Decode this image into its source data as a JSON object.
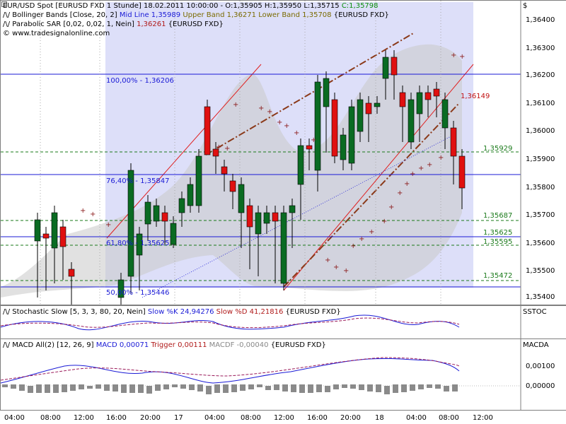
{
  "legend": {
    "line1_a": "EUR/USD Spot [EURUSD FXD  1 Stunde] 18.02.2011 10:00:00 - O:1,35905 H:1,35950 L:1,35715",
    "line1_c": "C:1,35798",
    "line2_a": "/\\/ Bollinger Bands [Close, 20, 2]",
    "line2_mid": "Mid Line 1,35989",
    "line2_upper": "Upper Band 1,36271",
    "line2_lower": "Lower Band 1,35708",
    "line2_tail": "{EURUSD FXD}",
    "line3_a": "/\\/ Parabolic SAR [0,02, 0,02, 1, Nein]",
    "line3_val": "1,36261",
    "line3_tail": "{EURUSD FXD}",
    "line4": "© www.tradesignalonline.com"
  },
  "yaxis_symbol": "$",
  "price_labels": [
    "1,36400",
    "1,36300",
    "1,36200",
    "1,36100",
    "1,36000",
    "1,35900",
    "1,35800",
    "1,35700",
    "1,35600",
    "1,35500",
    "1,35400"
  ],
  "fib_labels": [
    "100,00% - 1,36206",
    "76,40% - 1,35847",
    "61,80% - 1,35625",
    "50,00% - 1,35446"
  ],
  "level_labels": [
    "1,35929",
    "1,35687",
    "1,35625",
    "1,35595",
    "1,35472"
  ],
  "red_level": "1,36149",
  "stoch": {
    "label_a": "/\\/ Stochastic Slow [5, 3, 3, 80, 20, Nein]",
    "label_k": "Slow %K 24,94276",
    "label_d": "Slow %D 41,21816",
    "label_tail": "{EURUSD FXD}",
    "pane_name": "SSTOC"
  },
  "macd": {
    "label_a": "/\\/ MACD All(2) [12, 26, 9]",
    "label_macd": "MACD 0,00071",
    "label_trigger": "Trigger 0,00111",
    "label_macdf": "MACDF -0,00040",
    "label_tail": "{EURUSD FXD}",
    "pane_name": "MACDA",
    "tick_labels": [
      "0,00100",
      "0,00000"
    ]
  },
  "x_labels": [
    "04:00",
    "08:00",
    "12:00",
    "16:00",
    "20:00",
    "17",
    "04:00",
    "08:00",
    "12:00",
    "16:00",
    "20:00",
    "18",
    "04:00",
    "08:00",
    "12:00"
  ],
  "colors": {
    "up": "#0a6b22",
    "down": "#e01010",
    "fib": "#1a1ad6",
    "band": "#8a8a55",
    "sar": "#8b1a1a"
  }
}
